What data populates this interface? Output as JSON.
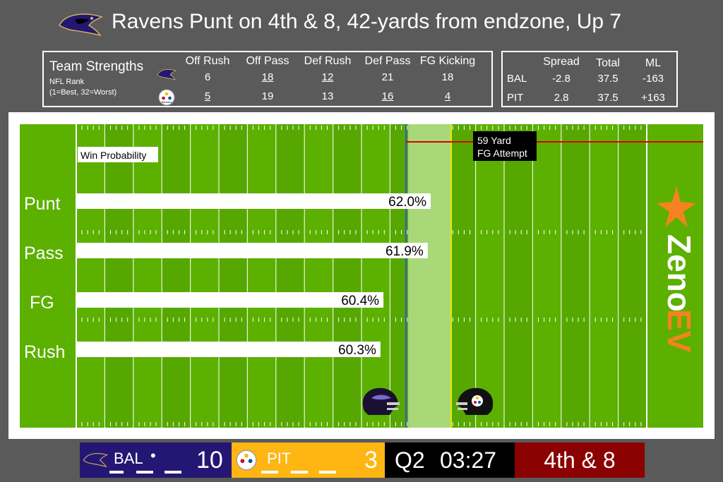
{
  "title": "Ravens Punt on 4th & 8, 42-yards from endzone, Up 7",
  "strengths": {
    "heading": "Team Strengths",
    "sub1": "NFL Rank",
    "sub2": "(1=Best, 32=Worst)",
    "columns": [
      "Off Rush",
      "Off Pass",
      "Def Rush",
      "Def Pass",
      "FG Kicking"
    ],
    "rows": [
      {
        "team": "BAL",
        "values": [
          "6",
          "18",
          "12",
          "21",
          "18"
        ],
        "underline": [
          false,
          true,
          true,
          false,
          false
        ]
      },
      {
        "team": "PIT",
        "values": [
          "5",
          "19",
          "13",
          "16",
          "4"
        ],
        "underline": [
          true,
          false,
          false,
          true,
          true
        ]
      }
    ]
  },
  "odds": {
    "columns": [
      "Spread",
      "Total",
      "ML"
    ],
    "rows": [
      {
        "team": "BAL",
        "values": [
          "-2.8",
          "37.5",
          "-163"
        ]
      },
      {
        "team": "PIT",
        "values": [
          "2.8",
          "37.5",
          "+163"
        ]
      }
    ]
  },
  "field": {
    "wp_label": "Win Probability",
    "fg_label_line1": "59 Yard",
    "fg_label_line2": "FG Attempt",
    "brand_top": "Zeno",
    "brand_bottom": "EV",
    "colors": {
      "grass": "#5cb000",
      "grass_dark": "#52a000",
      "los": "#3355cc",
      "first_down": "#e8e800",
      "fg_line": "#dd0000",
      "highlight": "#a8d878"
    }
  },
  "chart_data": {
    "type": "bar",
    "title": "Win Probability",
    "categories": [
      "Punt",
      "Pass",
      "FG",
      "Rush"
    ],
    "values": [
      62.0,
      61.9,
      60.4,
      60.3
    ],
    "labels": [
      "62.0%",
      "61.9%",
      "60.4%",
      "60.3%"
    ],
    "xlabel": "",
    "ylabel": ""
  },
  "scorebug": {
    "home_abbr": "BAL",
    "home_score": "10",
    "away_abbr": "PIT",
    "away_score": "3",
    "quarter": "Q2",
    "clock": "03:27",
    "down_distance": "4th & 8",
    "colors": {
      "home": "#241773",
      "away": "#ffb612",
      "clock": "#000000",
      "down": "#8b0000"
    }
  }
}
